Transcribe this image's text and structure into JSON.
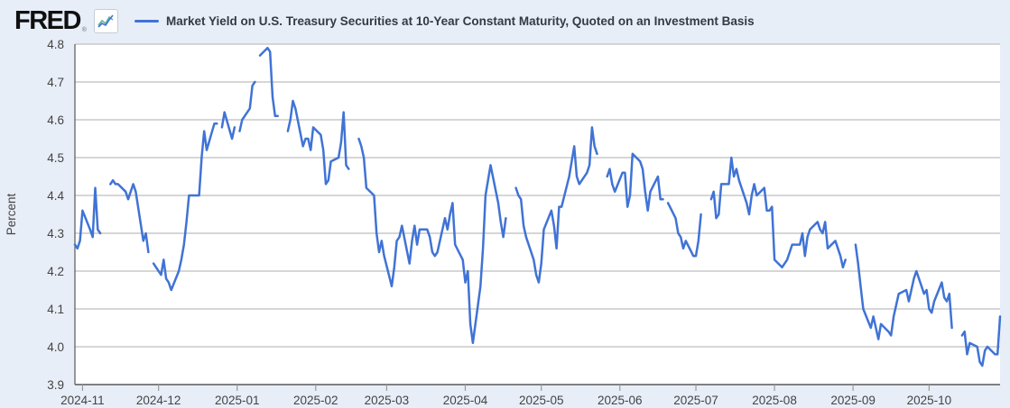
{
  "header": {
    "logo_text": "FRED",
    "registered_mark": "®"
  },
  "colors": {
    "background": "#e8eef8",
    "plot_background": "#ffffff",
    "line": "#4073d5",
    "gridline": "#c8c8c8",
    "axis": "#58595b",
    "tick_mark": "#9a9a9a",
    "tick_text": "#434343",
    "logo_icon_blue": "#4073d5",
    "logo_icon_teal": "#5fb39a"
  },
  "chart_data": {
    "type": "line",
    "title": "Market Yield on U.S. Treasury Securities at 10-Year Constant Maturity, Quoted on an Investment Basis",
    "xlabel": "",
    "ylabel": "Percent",
    "ylim": [
      3.9,
      4.8
    ],
    "yticks": [
      3.9,
      4.0,
      4.1,
      4.2,
      4.3,
      4.4,
      4.5,
      4.6,
      4.7,
      4.8
    ],
    "x_range": [
      "2024-10-29",
      "2025-10-29"
    ],
    "xtick_dates": [
      "2024-11-01",
      "2024-12-01",
      "2025-01-01",
      "2025-02-01",
      "2025-03-01",
      "2025-04-01",
      "2025-05-01",
      "2025-06-01",
      "2025-07-01",
      "2025-08-01",
      "2025-09-01",
      "2025-10-01"
    ],
    "xtick_labels": [
      "2024-11",
      "2024-12",
      "2025-01",
      "2025-02",
      "2025-03",
      "2025-04",
      "2025-05",
      "2025-06",
      "2025-07",
      "2025-08",
      "2025-09",
      "2025-10"
    ],
    "grid": true,
    "legend_position": "top-left",
    "series_name": "Market Yield on U.S. Treasury Securities at 10-Year Constant Maturity, Quoted on an Investment Basis",
    "dates": [
      "2024-10-29",
      "2024-10-30",
      "2024-10-31",
      "2024-11-01",
      "2024-11-04",
      "2024-11-05",
      "2024-11-06",
      "2024-11-07",
      "2024-11-08",
      "2024-11-11",
      "2024-11-12",
      "2024-11-13",
      "2024-11-14",
      "2024-11-15",
      "2024-11-18",
      "2024-11-19",
      "2024-11-20",
      "2024-11-21",
      "2024-11-22",
      "2024-11-25",
      "2024-11-26",
      "2024-11-27",
      "2024-11-28",
      "2024-11-29",
      "2024-12-02",
      "2024-12-03",
      "2024-12-04",
      "2024-12-05",
      "2024-12-06",
      "2024-12-09",
      "2024-12-10",
      "2024-12-11",
      "2024-12-12",
      "2024-12-13",
      "2024-12-16",
      "2024-12-17",
      "2024-12-18",
      "2024-12-19",
      "2024-12-20",
      "2024-12-23",
      "2024-12-24",
      "2024-12-25",
      "2024-12-26",
      "2024-12-27",
      "2024-12-30",
      "2024-12-31",
      "2025-01-01",
      "2025-01-02",
      "2025-01-03",
      "2025-01-06",
      "2025-01-07",
      "2025-01-08",
      "2025-01-09",
      "2025-01-10",
      "2025-01-13",
      "2025-01-14",
      "2025-01-15",
      "2025-01-16",
      "2025-01-17",
      "2025-01-20",
      "2025-01-21",
      "2025-01-22",
      "2025-01-23",
      "2025-01-24",
      "2025-01-27",
      "2025-01-28",
      "2025-01-29",
      "2025-01-30",
      "2025-01-31",
      "2025-02-03",
      "2025-02-04",
      "2025-02-05",
      "2025-02-06",
      "2025-02-07",
      "2025-02-10",
      "2025-02-11",
      "2025-02-12",
      "2025-02-13",
      "2025-02-14",
      "2025-02-17",
      "2025-02-18",
      "2025-02-19",
      "2025-02-20",
      "2025-02-21",
      "2025-02-24",
      "2025-02-25",
      "2025-02-26",
      "2025-02-27",
      "2025-02-28",
      "2025-03-03",
      "2025-03-04",
      "2025-03-05",
      "2025-03-06",
      "2025-03-07",
      "2025-03-10",
      "2025-03-11",
      "2025-03-12",
      "2025-03-13",
      "2025-03-14",
      "2025-03-17",
      "2025-03-18",
      "2025-03-19",
      "2025-03-20",
      "2025-03-21",
      "2025-03-24",
      "2025-03-25",
      "2025-03-26",
      "2025-03-27",
      "2025-03-28",
      "2025-03-31",
      "2025-04-01",
      "2025-04-02",
      "2025-04-03",
      "2025-04-04",
      "2025-04-07",
      "2025-04-08",
      "2025-04-09",
      "2025-04-10",
      "2025-04-11",
      "2025-04-14",
      "2025-04-15",
      "2025-04-16",
      "2025-04-17",
      "2025-04-18",
      "2025-04-21",
      "2025-04-22",
      "2025-04-23",
      "2025-04-24",
      "2025-04-25",
      "2025-04-28",
      "2025-04-29",
      "2025-04-30",
      "2025-05-01",
      "2025-05-02",
      "2025-05-05",
      "2025-05-06",
      "2025-05-07",
      "2025-05-08",
      "2025-05-09",
      "2025-05-12",
      "2025-05-13",
      "2025-05-14",
      "2025-05-15",
      "2025-05-16",
      "2025-05-19",
      "2025-05-20",
      "2025-05-21",
      "2025-05-22",
      "2025-05-23",
      "2025-05-26",
      "2025-05-27",
      "2025-05-28",
      "2025-05-29",
      "2025-05-30",
      "2025-06-02",
      "2025-06-03",
      "2025-06-04",
      "2025-06-05",
      "2025-06-06",
      "2025-06-09",
      "2025-06-10",
      "2025-06-11",
      "2025-06-12",
      "2025-06-13",
      "2025-06-16",
      "2025-06-17",
      "2025-06-18",
      "2025-06-19",
      "2025-06-20",
      "2025-06-23",
      "2025-06-24",
      "2025-06-25",
      "2025-06-26",
      "2025-06-27",
      "2025-06-30",
      "2025-07-01",
      "2025-07-02",
      "2025-07-03",
      "2025-07-04",
      "2025-07-07",
      "2025-07-08",
      "2025-07-09",
      "2025-07-10",
      "2025-07-11",
      "2025-07-14",
      "2025-07-15",
      "2025-07-16",
      "2025-07-17",
      "2025-07-18",
      "2025-07-21",
      "2025-07-22",
      "2025-07-23",
      "2025-07-24",
      "2025-07-25",
      "2025-07-28",
      "2025-07-29",
      "2025-07-30",
      "2025-07-31",
      "2025-08-01",
      "2025-08-04",
      "2025-08-05",
      "2025-08-06",
      "2025-08-07",
      "2025-08-08",
      "2025-08-11",
      "2025-08-12",
      "2025-08-13",
      "2025-08-14",
      "2025-08-15",
      "2025-08-18",
      "2025-08-19",
      "2025-08-20",
      "2025-08-21",
      "2025-08-22",
      "2025-08-25",
      "2025-08-26",
      "2025-08-27",
      "2025-08-28",
      "2025-08-29",
      "2025-09-01",
      "2025-09-02",
      "2025-09-03",
      "2025-09-04",
      "2025-09-05",
      "2025-09-08",
      "2025-09-09",
      "2025-09-10",
      "2025-09-11",
      "2025-09-12",
      "2025-09-15",
      "2025-09-16",
      "2025-09-17",
      "2025-09-18",
      "2025-09-19",
      "2025-09-22",
      "2025-09-23",
      "2025-09-24",
      "2025-09-25",
      "2025-09-26",
      "2025-09-29",
      "2025-09-30",
      "2025-10-01",
      "2025-10-02",
      "2025-10-03",
      "2025-10-06",
      "2025-10-07",
      "2025-10-08",
      "2025-10-09",
      "2025-10-10",
      "2025-10-13",
      "2025-10-14",
      "2025-10-15",
      "2025-10-16",
      "2025-10-17",
      "2025-10-20",
      "2025-10-21",
      "2025-10-22",
      "2025-10-23",
      "2025-10-24",
      "2025-10-27",
      "2025-10-28",
      "2025-10-29"
    ],
    "values": [
      4.27,
      4.26,
      4.28,
      4.36,
      4.31,
      4.29,
      4.42,
      4.31,
      4.3,
      null,
      4.43,
      4.44,
      4.43,
      4.43,
      4.41,
      4.39,
      4.41,
      4.43,
      4.41,
      4.28,
      4.3,
      4.25,
      null,
      4.22,
      4.19,
      4.23,
      4.18,
      4.17,
      4.15,
      4.2,
      4.23,
      4.27,
      4.33,
      4.4,
      4.4,
      4.4,
      4.5,
      4.57,
      4.52,
      4.59,
      4.59,
      null,
      4.58,
      4.62,
      4.55,
      4.58,
      null,
      4.57,
      4.6,
      4.63,
      4.69,
      4.7,
      null,
      4.77,
      4.79,
      4.78,
      4.66,
      4.61,
      4.61,
      null,
      4.57,
      4.6,
      4.65,
      4.63,
      4.53,
      4.55,
      4.55,
      4.52,
      4.58,
      4.56,
      4.52,
      4.43,
      4.44,
      4.49,
      4.5,
      4.54,
      4.62,
      4.48,
      4.47,
      null,
      4.55,
      4.53,
      4.5,
      4.42,
      4.4,
      4.3,
      4.25,
      4.28,
      4.24,
      4.16,
      4.21,
      4.28,
      4.29,
      4.32,
      4.22,
      4.28,
      4.32,
      4.27,
      4.31,
      4.31,
      4.29,
      4.25,
      4.24,
      4.25,
      4.34,
      4.31,
      4.35,
      4.38,
      4.27,
      4.23,
      4.17,
      4.2,
      4.06,
      4.01,
      4.16,
      4.26,
      4.4,
      4.44,
      4.48,
      4.38,
      4.33,
      4.29,
      4.34,
      null,
      4.42,
      4.4,
      4.39,
      4.32,
      4.29,
      4.23,
      4.19,
      4.17,
      4.22,
      4.31,
      4.36,
      4.32,
      4.26,
      4.37,
      4.37,
      4.45,
      4.49,
      4.53,
      4.45,
      4.43,
      4.46,
      4.48,
      4.58,
      4.53,
      4.51,
      null,
      4.45,
      4.47,
      4.43,
      4.41,
      4.46,
      4.46,
      4.37,
      4.4,
      4.51,
      4.49,
      4.47,
      4.41,
      4.36,
      4.41,
      4.45,
      4.39,
      4.39,
      null,
      4.38,
      4.34,
      4.3,
      4.29,
      4.26,
      4.28,
      4.24,
      4.24,
      4.28,
      4.35,
      null,
      4.39,
      4.41,
      4.34,
      4.35,
      4.43,
      4.43,
      4.5,
      4.45,
      4.47,
      4.44,
      4.38,
      4.35,
      4.4,
      4.43,
      4.4,
      4.42,
      4.36,
      4.36,
      4.37,
      4.23,
      4.21,
      4.22,
      4.23,
      4.25,
      4.27,
      4.27,
      4.3,
      4.24,
      4.29,
      4.31,
      4.33,
      4.31,
      4.3,
      4.33,
      4.26,
      4.28,
      4.26,
      4.24,
      4.21,
      4.23,
      null,
      4.27,
      4.22,
      4.16,
      4.1,
      4.05,
      4.08,
      4.05,
      4.02,
      4.06,
      4.04,
      4.03,
      4.08,
      4.11,
      4.14,
      4.15,
      4.12,
      4.15,
      4.18,
      4.2,
      4.14,
      4.15,
      4.1,
      4.09,
      4.12,
      4.17,
      4.13,
      4.12,
      4.14,
      4.05,
      null,
      4.03,
      4.04,
      3.98,
      4.01,
      4.0,
      3.96,
      3.95,
      3.99,
      4.0,
      3.98,
      3.98,
      4.08
    ]
  }
}
